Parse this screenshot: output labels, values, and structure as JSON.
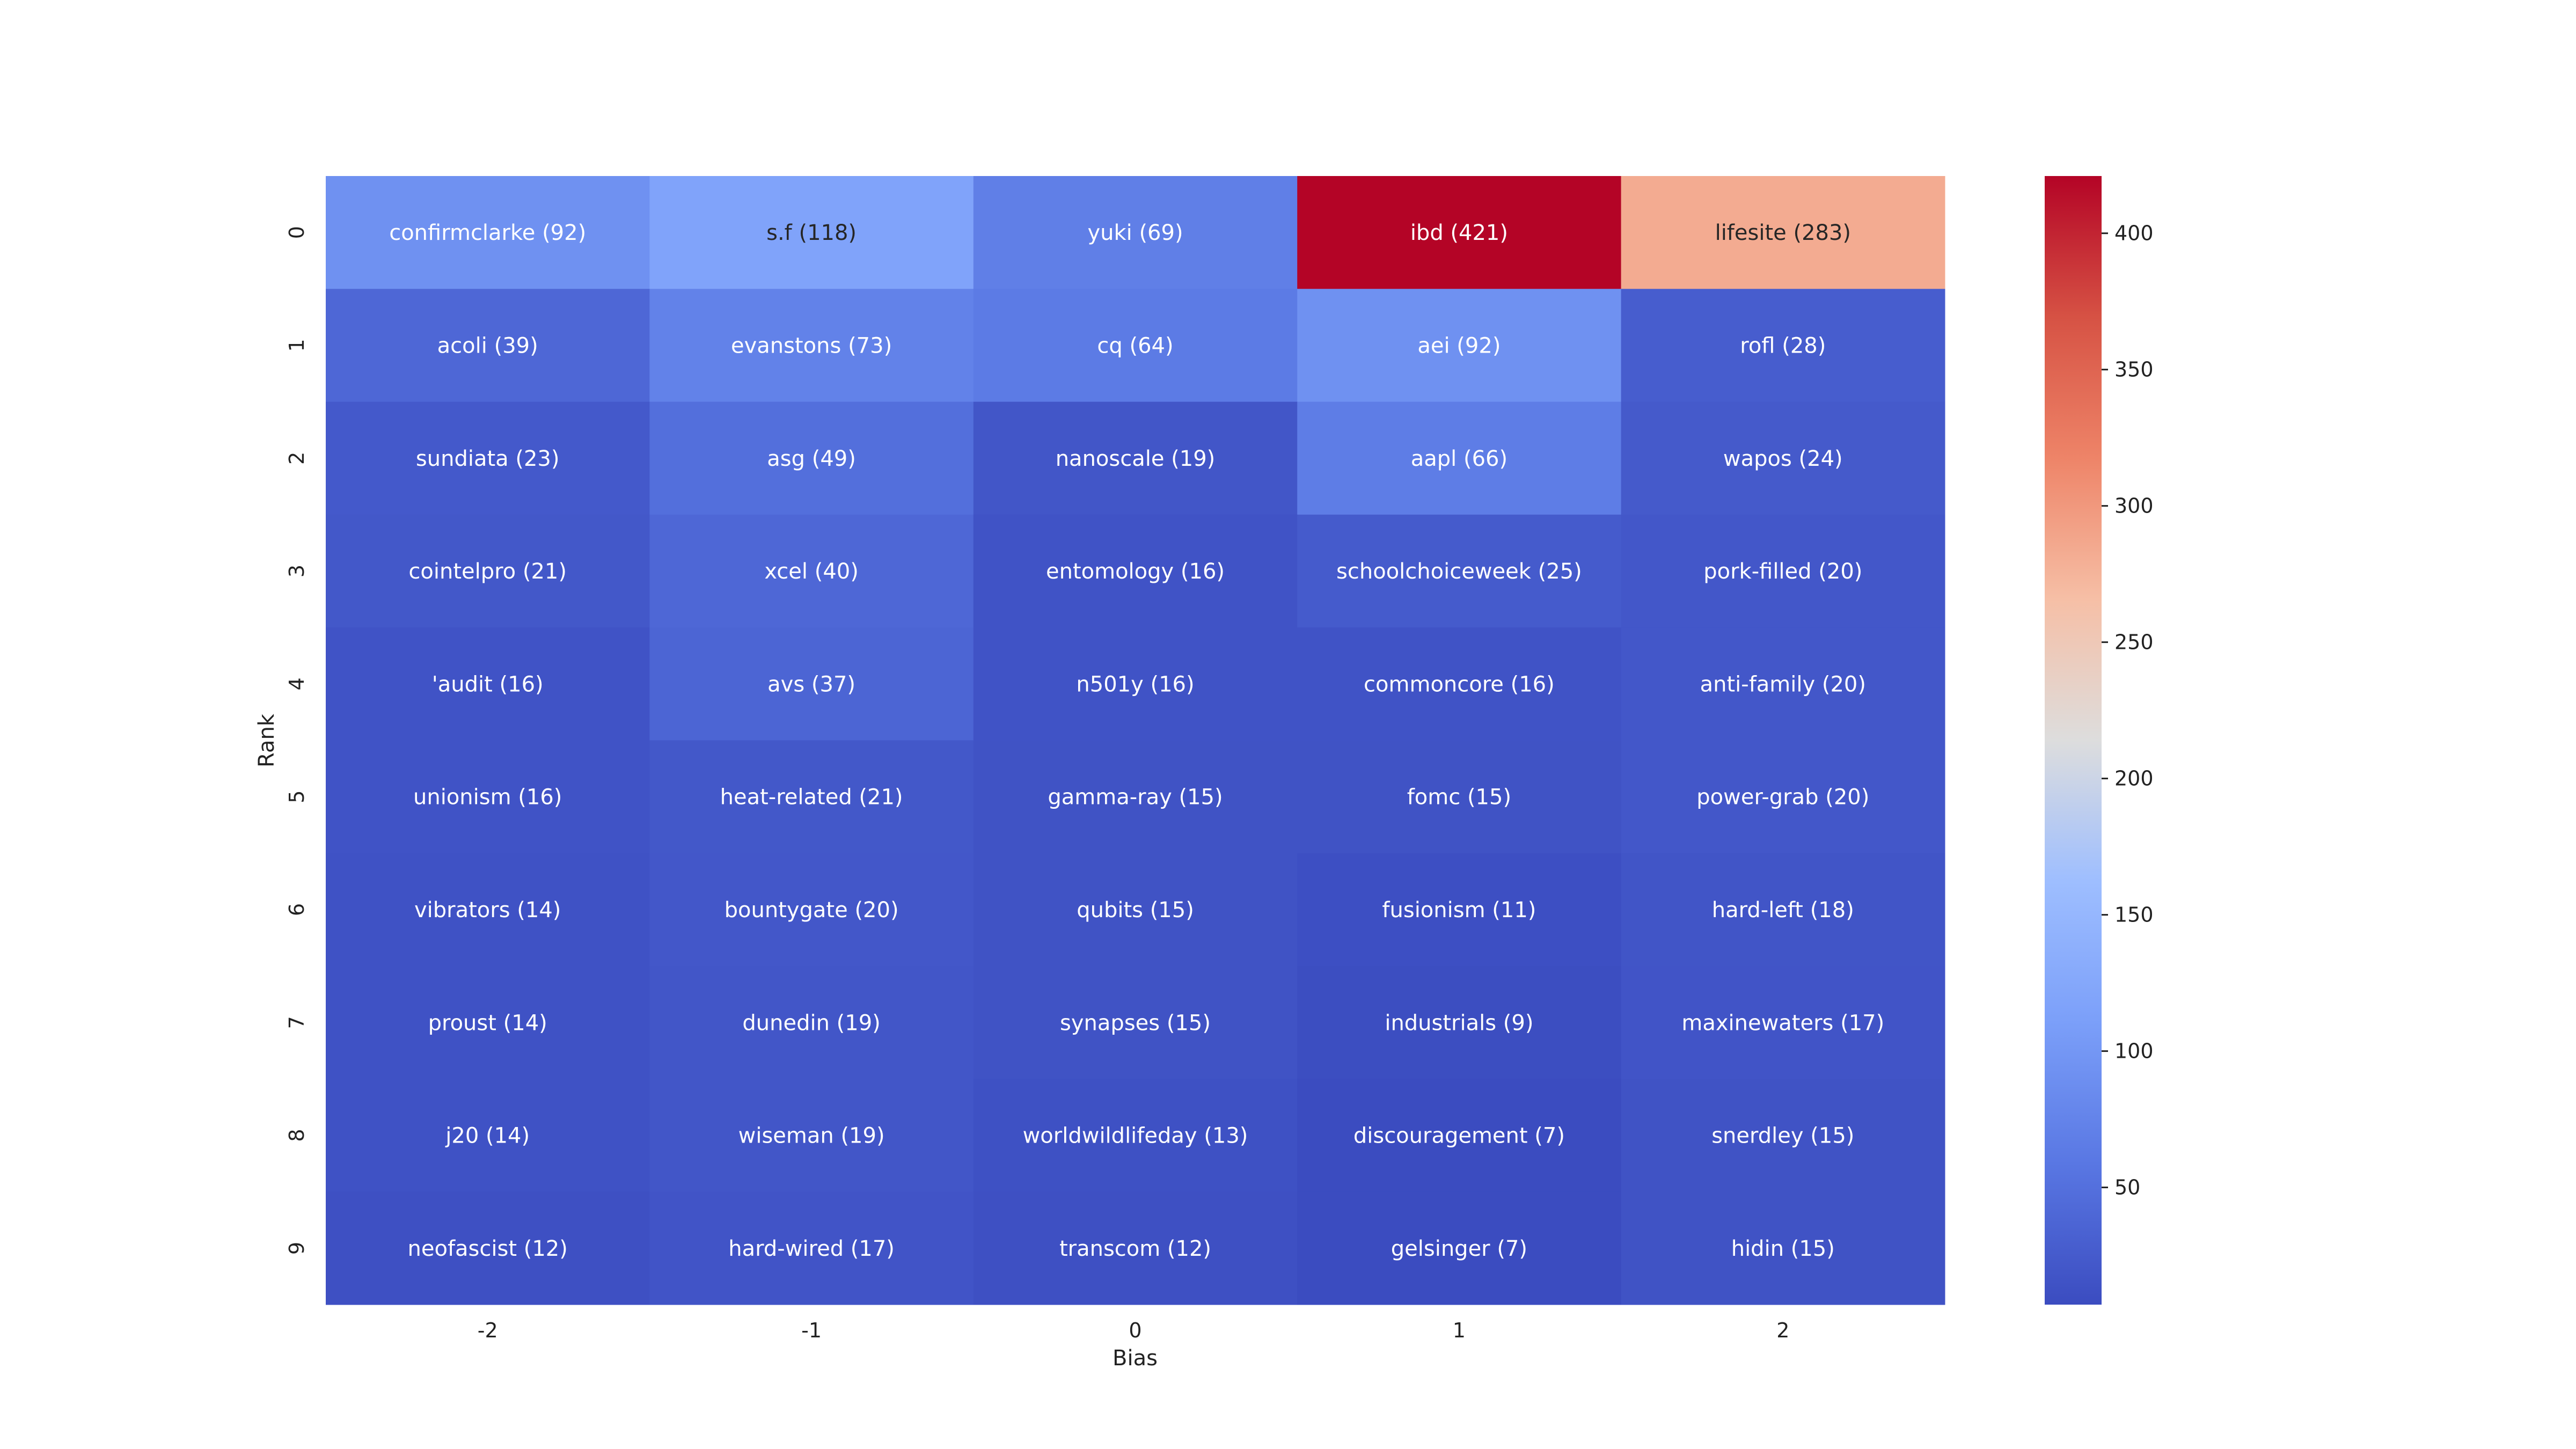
{
  "chart_data": {
    "type": "heatmap",
    "title": "",
    "xlabel": "Bias",
    "ylabel": "Rank",
    "x_categories": [
      "-2",
      "-1",
      "0",
      "1",
      "2"
    ],
    "y_categories": [
      "0",
      "1",
      "2",
      "3",
      "4",
      "5",
      "6",
      "7",
      "8",
      "9"
    ],
    "colormap": "coolwarm",
    "color_range": [
      7,
      421
    ],
    "colorbar_ticks": [
      50,
      100,
      150,
      200,
      250,
      300,
      350,
      400
    ],
    "cells": [
      [
        {
          "label": "confirmclarke (92)",
          "value": 92
        },
        {
          "label": "s.f (118)",
          "value": 118
        },
        {
          "label": "yuki (69)",
          "value": 69
        },
        {
          "label": "ibd (421)",
          "value": 421
        },
        {
          "label": "lifesite (283)",
          "value": 283
        }
      ],
      [
        {
          "label": "acoli (39)",
          "value": 39
        },
        {
          "label": "evanstons (73)",
          "value": 73
        },
        {
          "label": "cq (64)",
          "value": 64
        },
        {
          "label": "aei (92)",
          "value": 92
        },
        {
          "label": "rofl (28)",
          "value": 28
        }
      ],
      [
        {
          "label": "sundiata (23)",
          "value": 23
        },
        {
          "label": "asg (49)",
          "value": 49
        },
        {
          "label": "nanoscale (19)",
          "value": 19
        },
        {
          "label": "aapl (66)",
          "value": 66
        },
        {
          "label": "wapos (24)",
          "value": 24
        }
      ],
      [
        {
          "label": "cointelpro (21)",
          "value": 21
        },
        {
          "label": "xcel (40)",
          "value": 40
        },
        {
          "label": "entomology (16)",
          "value": 16
        },
        {
          "label": "schoolchoiceweek (25)",
          "value": 25
        },
        {
          "label": "pork-filled (20)",
          "value": 20
        }
      ],
      [
        {
          "label": "'audit (16)",
          "value": 16
        },
        {
          "label": "avs (37)",
          "value": 37
        },
        {
          "label": "n501y (16)",
          "value": 16
        },
        {
          "label": "commoncore (16)",
          "value": 16
        },
        {
          "label": "anti-family (20)",
          "value": 20
        }
      ],
      [
        {
          "label": "unionism (16)",
          "value": 16
        },
        {
          "label": "heat-related (21)",
          "value": 21
        },
        {
          "label": "gamma-ray (15)",
          "value": 15
        },
        {
          "label": "fomc (15)",
          "value": 15
        },
        {
          "label": "power-grab (20)",
          "value": 20
        }
      ],
      [
        {
          "label": "vibrators (14)",
          "value": 14
        },
        {
          "label": "bountygate (20)",
          "value": 20
        },
        {
          "label": "qubits (15)",
          "value": 15
        },
        {
          "label": "fusionism (11)",
          "value": 11
        },
        {
          "label": "hard-left (18)",
          "value": 18
        }
      ],
      [
        {
          "label": "proust (14)",
          "value": 14
        },
        {
          "label": "dunedin (19)",
          "value": 19
        },
        {
          "label": "synapses (15)",
          "value": 15
        },
        {
          "label": "industrials (9)",
          "value": 9
        },
        {
          "label": "maxinewaters (17)",
          "value": 17
        }
      ],
      [
        {
          "label": "j20 (14)",
          "value": 14
        },
        {
          "label": "wiseman (19)",
          "value": 19
        },
        {
          "label": "worldwildlifeday (13)",
          "value": 13
        },
        {
          "label": "discouragement (7)",
          "value": 7
        },
        {
          "label": "snerdley (15)",
          "value": 15
        }
      ],
      [
        {
          "label": "neofascist (12)",
          "value": 12
        },
        {
          "label": "hard-wired (17)",
          "value": 17
        },
        {
          "label": "transcom (12)",
          "value": 12
        },
        {
          "label": "gelsinger (7)",
          "value": 7
        },
        {
          "label": "hidin (15)",
          "value": 15
        }
      ]
    ]
  }
}
